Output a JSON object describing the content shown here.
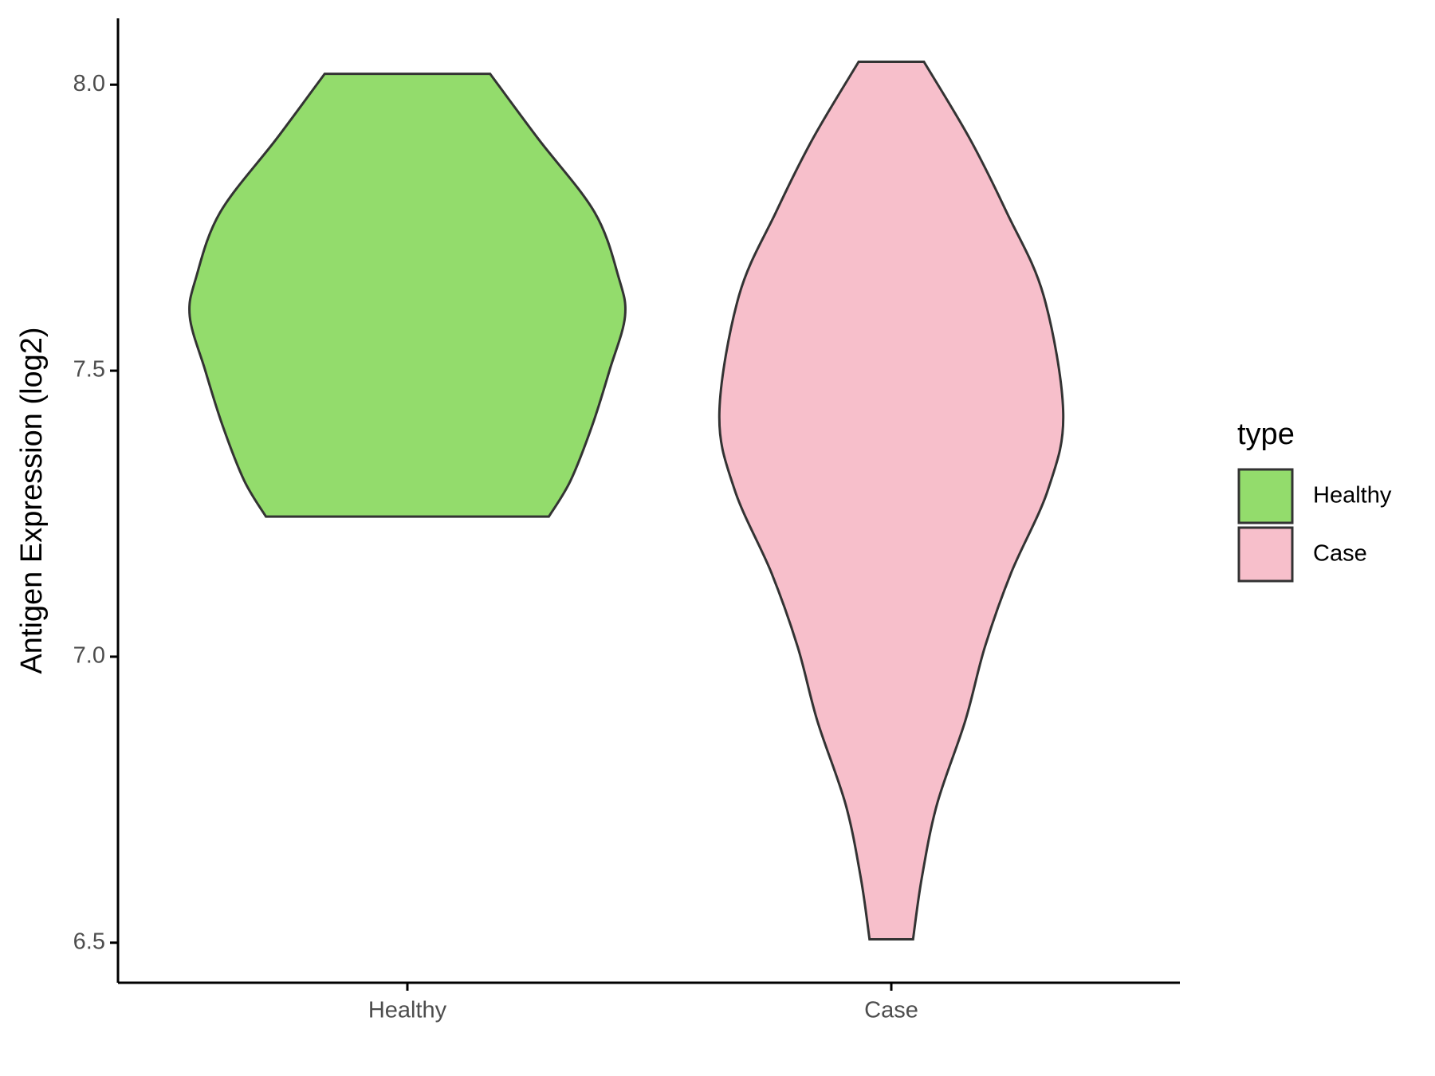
{
  "chart_data": {
    "type": "violin",
    "ylabel": "Antigen Expression (log2)",
    "categories": [
      "Healthy",
      "Case"
    ],
    "ylim": [
      6.43,
      8.116
    ],
    "yticks": [
      6.5,
      {
        "value": 7,
        "label": "7.0"
      },
      7.5,
      {
        "value": 8,
        "label": "8.0"
      }
    ],
    "legend_title": "type",
    "legend_position": "right",
    "series": [
      {
        "name": "Healthy",
        "color": "#93dc6c",
        "y": [
          8.019,
          7.906,
          7.777,
          7.664,
          7.595,
          7.502,
          7.405,
          7.308,
          7.245
        ],
        "width": [
          0.38,
          0.6,
          0.86,
          0.97,
          1.0,
          0.93,
          0.85,
          0.75,
          0.65
        ]
      },
      {
        "name": "Case",
        "color": "#f7bfcb",
        "y": [
          8.04,
          7.906,
          7.777,
          7.631,
          7.426,
          7.292,
          7.146,
          7.017,
          6.888,
          6.742,
          6.613,
          6.506
        ],
        "width": [
          0.15,
          0.36,
          0.53,
          0.7,
          0.79,
          0.72,
          0.55,
          0.43,
          0.34,
          0.21,
          0.14,
          0.1
        ]
      }
    ]
  }
}
